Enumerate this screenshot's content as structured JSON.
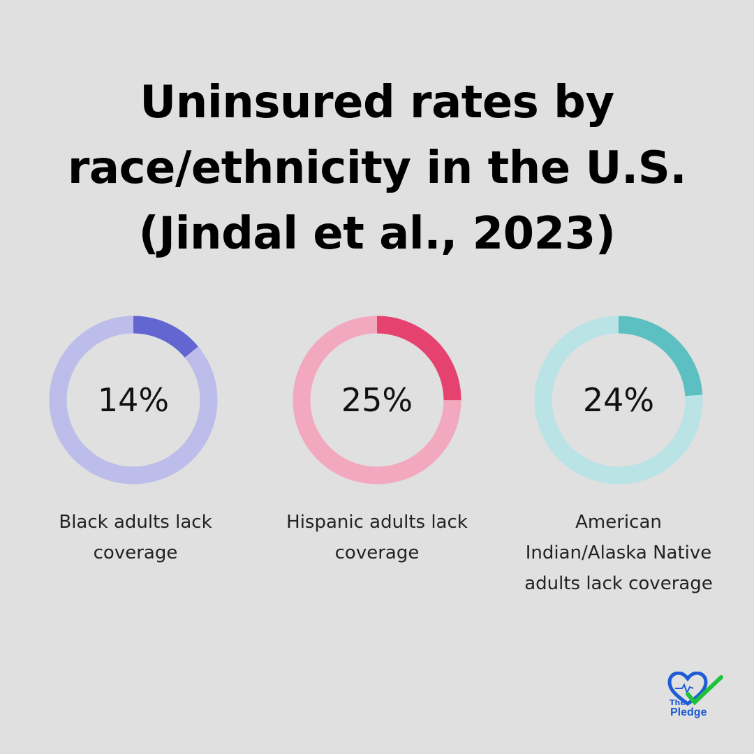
{
  "title_lines": [
    "Uninsured rates by",
    "race/ethnicity in the U.S.",
    "(Jindal et al., 2023)"
  ],
  "chart_data": {
    "type": "pie",
    "title": "Uninsured rates by race/ethnicity in the U.S. (Jindal et al., 2023)",
    "items": [
      {
        "value": 14,
        "label": "14%",
        "caption": "Black adults lack coverage",
        "color": "#6366d1",
        "track_color": "#bcbdeb"
      },
      {
        "value": 25,
        "label": "25%",
        "caption": "Hispanic adults lack coverage",
        "color": "#e5426f",
        "track_color": "#f2a8bf"
      },
      {
        "value": 24,
        "label": "24%",
        "caption": "American Indian/Alaska Native adults lack coverage",
        "color": "#5cbfc2",
        "track_color": "#b9e3e5"
      }
    ]
  },
  "logo": {
    "the": "The",
    "name": "Pledge",
    "icon": "heart-check-icon"
  }
}
